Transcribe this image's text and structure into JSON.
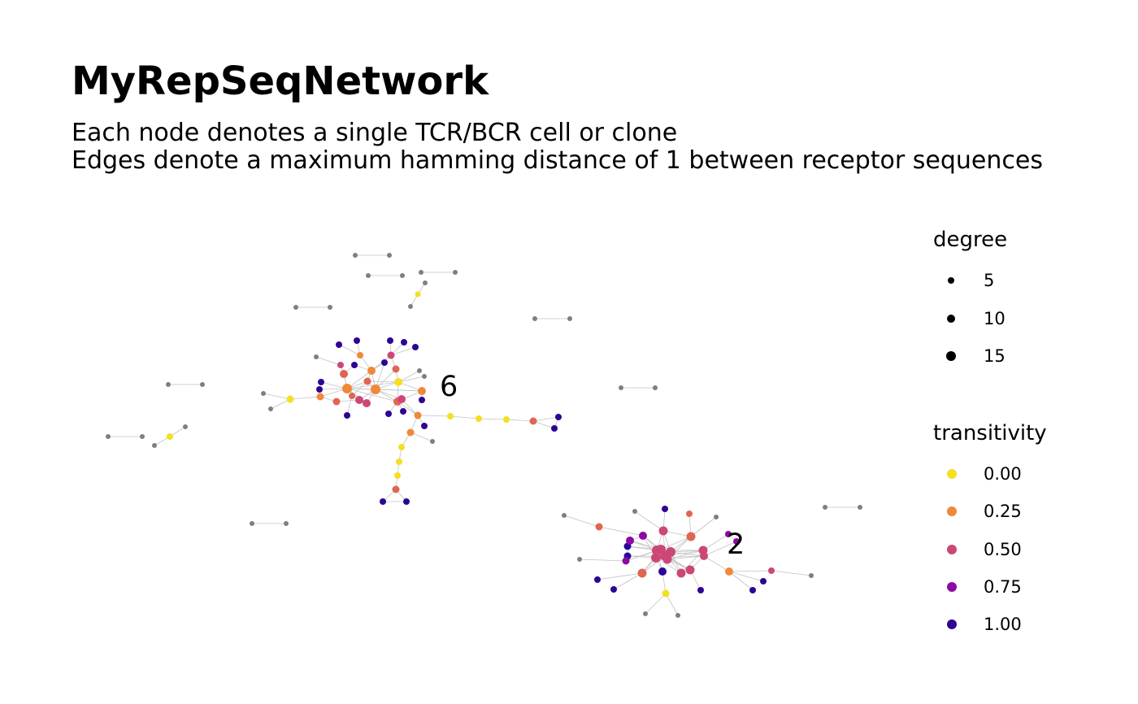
{
  "title": "MyRepSeqNetwork",
  "subtitle_lines": [
    "Each node denotes a single TCR/BCR cell or clone",
    "Edges denote a maximum hamming distance of 1 between receptor sequences"
  ],
  "colors": {
    "edge": "#c2c2c2",
    "isolated_pair_node": "#7f7f7f",
    "transitivity_0_00": "#f4e01f",
    "transitivity_0_25": "#f0883a",
    "transitivity_0_50": "#cc4778",
    "transitivity_0_75": "#8b0aa5",
    "transitivity_1_00": "#2d0594"
  },
  "legend": {
    "degree": {
      "title": "degree",
      "items": [
        {
          "label": "5",
          "value": 5
        },
        {
          "label": "10",
          "value": 10
        },
        {
          "label": "15",
          "value": 15
        }
      ]
    },
    "transitivity": {
      "title": "transitivity",
      "items": [
        {
          "label": "0.00",
          "value": 0.0,
          "color": "#f4e01f"
        },
        {
          "label": "0.25",
          "value": 0.25,
          "color": "#f0883a"
        },
        {
          "label": "0.50",
          "value": 0.5,
          "color": "#cc4778"
        },
        {
          "label": "0.75",
          "value": 0.75,
          "color": "#8b0aa5"
        },
        {
          "label": "1.00",
          "value": 1.0,
          "color": "#2d0594"
        }
      ]
    }
  },
  "cluster_labels": [
    {
      "id": "cluster-6",
      "text": "6"
    },
    {
      "id": "cluster-2",
      "text": "2"
    }
  ]
}
